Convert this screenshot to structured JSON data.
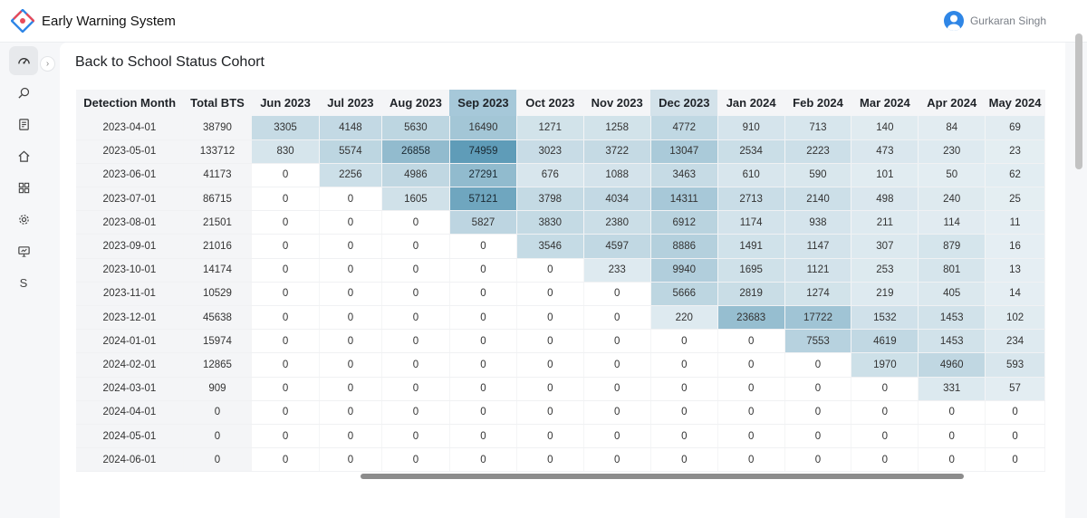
{
  "app": {
    "title": "Early Warning System"
  },
  "user": {
    "name": "Gurkaran Singh"
  },
  "sidebar": {
    "items": [
      {
        "icon": "dashboard-icon",
        "active": true
      },
      {
        "icon": "search-icon"
      },
      {
        "icon": "report-icon"
      },
      {
        "icon": "home-icon"
      },
      {
        "icon": "grid-icon"
      },
      {
        "icon": "gear-icon"
      },
      {
        "icon": "monitor-icon"
      },
      {
        "icon": "letter-s-icon",
        "label": "S"
      }
    ]
  },
  "page": {
    "title": "Back to School Status Cohort"
  },
  "table": {
    "columns": [
      "Detection Month",
      "Total BTS",
      "Jun 2023",
      "Jul 2023",
      "Aug 2023",
      "Sep 2023",
      "Oct 2023",
      "Nov 2023",
      "Dec 2023",
      "Jan 2024",
      "Feb 2024",
      "Mar 2024",
      "Apr 2024",
      "May 2024"
    ],
    "highlighted_columns": [
      "Sep 2023",
      "Dec 2023"
    ],
    "rows": [
      [
        "2023-04-01",
        "38790",
        "3305",
        "4148",
        "5630",
        "16490",
        "1271",
        "1258",
        "4772",
        "910",
        "713",
        "140",
        "84",
        "69"
      ],
      [
        "2023-05-01",
        "133712",
        "830",
        "5574",
        "26858",
        "74959",
        "3023",
        "3722",
        "13047",
        "2534",
        "2223",
        "473",
        "230",
        "23"
      ],
      [
        "2023-06-01",
        "41173",
        "0",
        "2256",
        "4986",
        "27291",
        "676",
        "1088",
        "3463",
        "610",
        "590",
        "101",
        "50",
        "62"
      ],
      [
        "2023-07-01",
        "86715",
        "0",
        "0",
        "1605",
        "57121",
        "3798",
        "4034",
        "14311",
        "2713",
        "2140",
        "498",
        "240",
        "25"
      ],
      [
        "2023-08-01",
        "21501",
        "0",
        "0",
        "0",
        "5827",
        "3830",
        "2380",
        "6912",
        "1174",
        "938",
        "211",
        "114",
        "11"
      ],
      [
        "2023-09-01",
        "21016",
        "0",
        "0",
        "0",
        "0",
        "3546",
        "4597",
        "8886",
        "1491",
        "1147",
        "307",
        "879",
        "16"
      ],
      [
        "2023-10-01",
        "14174",
        "0",
        "0",
        "0",
        "0",
        "0",
        "233",
        "9940",
        "1695",
        "1121",
        "253",
        "801",
        "13"
      ],
      [
        "2023-11-01",
        "10529",
        "0",
        "0",
        "0",
        "0",
        "0",
        "0",
        "5666",
        "2819",
        "1274",
        "219",
        "405",
        "14"
      ],
      [
        "2023-12-01",
        "45638",
        "0",
        "0",
        "0",
        "0",
        "0",
        "0",
        "220",
        "23683",
        "17722",
        "1532",
        "1453",
        "102"
      ],
      [
        "2024-01-01",
        "15974",
        "0",
        "0",
        "0",
        "0",
        "0",
        "0",
        "0",
        "0",
        "7553",
        "4619",
        "1453",
        "234"
      ],
      [
        "2024-02-01",
        "12865",
        "0",
        "0",
        "0",
        "0",
        "0",
        "0",
        "0",
        "0",
        "0",
        "1970",
        "4960",
        "593"
      ],
      [
        "2024-03-01",
        "909",
        "0",
        "0",
        "0",
        "0",
        "0",
        "0",
        "0",
        "0",
        "0",
        "0",
        "331",
        "57"
      ],
      [
        "2024-04-01",
        "0",
        "0",
        "0",
        "0",
        "0",
        "0",
        "0",
        "0",
        "0",
        "0",
        "0",
        "0",
        "0"
      ],
      [
        "2024-05-01",
        "0",
        "0",
        "0",
        "0",
        "0",
        "0",
        "0",
        "0",
        "0",
        "0",
        "0",
        "0",
        "0"
      ],
      [
        "2024-06-01",
        "0",
        "0",
        "0",
        "0",
        "0",
        "0",
        "0",
        "0",
        "0",
        "0",
        "0",
        "0",
        "0"
      ]
    ]
  },
  "colors": {
    "accent": "#2f86e6",
    "heat_low": "#e8f0f4",
    "heat_high": "#5f9cb8",
    "header_bg": "#f4f5f7"
  }
}
